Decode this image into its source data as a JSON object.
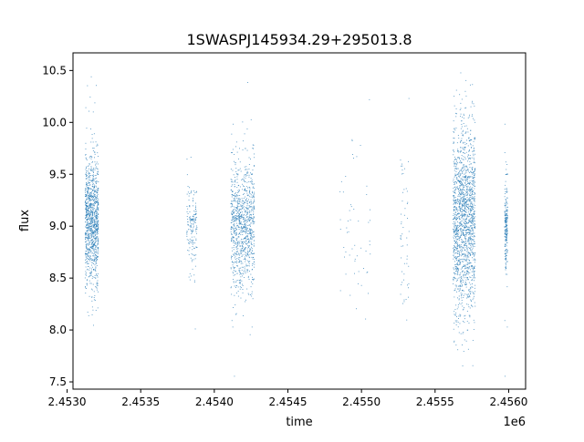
{
  "chart_data": {
    "type": "scatter",
    "title": "1SWASPJ145934.29+295013.8",
    "xlabel": "time",
    "ylabel": "flux",
    "x_offset_label": "1e6",
    "xlim": [
      2453040,
      2456115
    ],
    "ylim": [
      7.43,
      10.67
    ],
    "xticks": [
      2453000,
      2453500,
      2454000,
      2454500,
      2455000,
      2455500,
      2456000
    ],
    "xtick_labels": [
      "2.4530",
      "2.4535",
      "2.4540",
      "2.4545",
      "2.4550",
      "2.4555",
      "2.4560"
    ],
    "yticks": [
      7.5,
      8.0,
      8.5,
      9.0,
      9.5,
      10.0,
      10.5
    ],
    "ytick_labels": [
      "7.5",
      "8.0",
      "8.5",
      "9.0",
      "9.5",
      "10.0",
      "10.5"
    ],
    "grid": false,
    "marker_color": "#1f77b4",
    "observing_seasons": [
      {
        "x_start": 2453120,
        "x_end": 2453210,
        "density": 1.0,
        "center": 9.05,
        "spread": 0.3
      },
      {
        "x_start": 2453810,
        "x_end": 2453880,
        "density": 0.15,
        "center": 9.0,
        "spread": 0.2
      },
      {
        "x_start": 2454110,
        "x_end": 2454270,
        "density": 0.9,
        "center": 9.0,
        "spread": 0.3
      },
      {
        "x_start": 2454850,
        "x_end": 2455060,
        "density": 0.05,
        "center": 8.9,
        "spread": 0.4
      },
      {
        "x_start": 2455260,
        "x_end": 2455320,
        "density": 0.05,
        "center": 8.9,
        "spread": 0.4
      },
      {
        "x_start": 2455620,
        "x_end": 2455770,
        "density": 1.5,
        "center": 9.05,
        "spread": 0.45
      },
      {
        "x_start": 2455970,
        "x_end": 2455990,
        "density": 0.2,
        "center": 9.0,
        "spread": 0.2
      }
    ]
  }
}
